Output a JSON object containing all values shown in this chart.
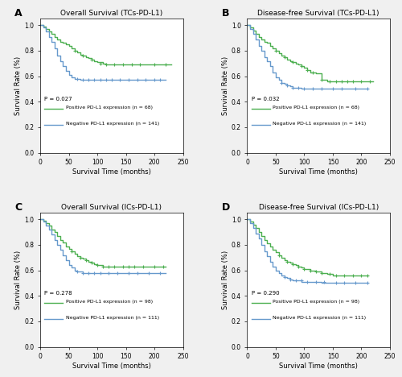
{
  "panels": [
    {
      "label": "A",
      "title": "Overall Survival (TCs-PD-L1)",
      "pvalue": "P = 0.027",
      "pos_label": "Positive PD-L1 expression (n = 68)",
      "neg_label": "Negative PD-L1 expression (n = 141)",
      "pos_color": "#4CAF50",
      "neg_color": "#6699CC",
      "xlabel": "Survival Time (months)",
      "ylabel": "Survival Rate (%)",
      "xlim": [
        0,
        250
      ],
      "ylim": [
        0.0,
        1.05
      ],
      "yticks": [
        0.0,
        0.2,
        0.4,
        0.6,
        0.8,
        1.0
      ],
      "xticks": [
        0,
        50,
        100,
        150,
        200,
        250
      ],
      "pos_curve_x": [
        0,
        5,
        10,
        15,
        20,
        25,
        30,
        35,
        40,
        45,
        50,
        55,
        60,
        65,
        70,
        75,
        80,
        85,
        90,
        95,
        100,
        110,
        115,
        120,
        130,
        140,
        150,
        160,
        170,
        180,
        190,
        200,
        210,
        220,
        230
      ],
      "pos_curve_y": [
        1.0,
        0.99,
        0.97,
        0.95,
        0.93,
        0.91,
        0.89,
        0.87,
        0.86,
        0.85,
        0.84,
        0.82,
        0.8,
        0.79,
        0.77,
        0.76,
        0.75,
        0.74,
        0.73,
        0.72,
        0.71,
        0.7,
        0.69,
        0.69,
        0.69,
        0.69,
        0.69,
        0.69,
        0.69,
        0.69,
        0.69,
        0.69,
        0.69,
        0.69,
        0.69
      ],
      "neg_curve_x": [
        0,
        5,
        10,
        15,
        20,
        25,
        30,
        35,
        40,
        45,
        50,
        55,
        60,
        65,
        70,
        75,
        80,
        85,
        90,
        95,
        100,
        110,
        120,
        130,
        140,
        150,
        160,
        170,
        180,
        190,
        200,
        210,
        220
      ],
      "neg_curve_y": [
        1.0,
        0.98,
        0.95,
        0.91,
        0.87,
        0.82,
        0.76,
        0.72,
        0.68,
        0.64,
        0.61,
        0.59,
        0.58,
        0.58,
        0.57,
        0.57,
        0.57,
        0.57,
        0.57,
        0.57,
        0.57,
        0.57,
        0.57,
        0.57,
        0.57,
        0.57,
        0.57,
        0.57,
        0.57,
        0.57,
        0.57,
        0.57,
        0.57
      ],
      "pos_censor_x": [
        60,
        75,
        90,
        105,
        115,
        130,
        145,
        160,
        175,
        200,
        220
      ],
      "pos_censor_y": [
        0.8,
        0.76,
        0.73,
        0.7,
        0.69,
        0.69,
        0.69,
        0.69,
        0.69,
        0.69,
        0.69
      ],
      "neg_censor_x": [
        65,
        75,
        85,
        95,
        105,
        115,
        125,
        140,
        155,
        170,
        185,
        200,
        210
      ],
      "neg_censor_y": [
        0.58,
        0.57,
        0.57,
        0.57,
        0.57,
        0.57,
        0.57,
        0.57,
        0.57,
        0.57,
        0.57,
        0.57,
        0.57
      ]
    },
    {
      "label": "B",
      "title": "Disease-free Survival (TCs-PD-L1)",
      "pvalue": "P = 0.032",
      "pos_label": "Positive PD-L1 expression (n = 68)",
      "neg_label": "Negative PD-L1 expression (n = 141)",
      "pos_color": "#4CAF50",
      "neg_color": "#6699CC",
      "xlabel": "Survival Time (months)",
      "ylabel": "Survival Rate (%)",
      "xlim": [
        0,
        250
      ],
      "ylim": [
        0.0,
        1.05
      ],
      "yticks": [
        0.0,
        0.2,
        0.4,
        0.6,
        0.8,
        1.0
      ],
      "xticks": [
        0,
        50,
        100,
        150,
        200,
        250
      ],
      "pos_curve_x": [
        0,
        5,
        10,
        15,
        20,
        25,
        30,
        35,
        40,
        45,
        50,
        55,
        60,
        65,
        70,
        75,
        80,
        85,
        90,
        95,
        100,
        105,
        110,
        120,
        130,
        140,
        150,
        160,
        170,
        180,
        190,
        200,
        210,
        220
      ],
      "pos_curve_y": [
        1.0,
        0.98,
        0.96,
        0.93,
        0.91,
        0.89,
        0.87,
        0.86,
        0.84,
        0.82,
        0.8,
        0.78,
        0.76,
        0.75,
        0.73,
        0.72,
        0.71,
        0.7,
        0.69,
        0.68,
        0.67,
        0.65,
        0.63,
        0.62,
        0.57,
        0.56,
        0.56,
        0.56,
        0.56,
        0.56,
        0.56,
        0.56,
        0.56,
        0.56
      ],
      "neg_curve_x": [
        0,
        5,
        10,
        15,
        20,
        25,
        30,
        35,
        40,
        45,
        50,
        55,
        60,
        65,
        70,
        75,
        80,
        85,
        90,
        95,
        100,
        110,
        120,
        130,
        140,
        150,
        160,
        170,
        180,
        190,
        200,
        210
      ],
      "neg_curve_y": [
        1.0,
        0.97,
        0.93,
        0.89,
        0.84,
        0.8,
        0.75,
        0.72,
        0.68,
        0.63,
        0.59,
        0.57,
        0.55,
        0.54,
        0.53,
        0.52,
        0.51,
        0.51,
        0.51,
        0.5,
        0.5,
        0.5,
        0.5,
        0.5,
        0.5,
        0.5,
        0.5,
        0.5,
        0.5,
        0.5,
        0.5,
        0.5
      ],
      "pos_censor_x": [
        50,
        65,
        80,
        95,
        105,
        115,
        130,
        145,
        155,
        165,
        175,
        185,
        200,
        215
      ],
      "pos_censor_y": [
        0.8,
        0.75,
        0.71,
        0.68,
        0.65,
        0.63,
        0.57,
        0.56,
        0.56,
        0.56,
        0.56,
        0.56,
        0.56,
        0.56
      ],
      "neg_censor_x": [
        60,
        70,
        80,
        90,
        100,
        115,
        130,
        150,
        165,
        190,
        210
      ],
      "neg_censor_y": [
        0.55,
        0.53,
        0.51,
        0.51,
        0.5,
        0.5,
        0.5,
        0.5,
        0.5,
        0.5,
        0.5
      ]
    },
    {
      "label": "C",
      "title": "Overall Survival (ICs-PD-L1)",
      "pvalue": "P = 0.278",
      "pos_label": "Positive PD-L1 expression (n = 98)",
      "neg_label": "Negative PD-L1 expression (n = 111)",
      "pos_color": "#4CAF50",
      "neg_color": "#6699CC",
      "xlabel": "Survival Time (months)",
      "ylabel": "Survival Rate (%)",
      "xlim": [
        0,
        250
      ],
      "ylim": [
        0.0,
        1.05
      ],
      "yticks": [
        0.0,
        0.2,
        0.4,
        0.6,
        0.8,
        1.0
      ],
      "xticks": [
        0,
        50,
        100,
        150,
        200,
        250
      ],
      "pos_curve_x": [
        0,
        5,
        10,
        15,
        20,
        25,
        30,
        35,
        40,
        45,
        50,
        55,
        60,
        65,
        70,
        75,
        80,
        85,
        90,
        95,
        100,
        110,
        120,
        130,
        140,
        150,
        160,
        170,
        180,
        200,
        210,
        220
      ],
      "pos_curve_y": [
        1.0,
        0.99,
        0.97,
        0.95,
        0.92,
        0.9,
        0.87,
        0.84,
        0.82,
        0.79,
        0.77,
        0.75,
        0.73,
        0.71,
        0.7,
        0.69,
        0.68,
        0.67,
        0.66,
        0.65,
        0.64,
        0.63,
        0.63,
        0.63,
        0.63,
        0.63,
        0.63,
        0.63,
        0.63,
        0.63,
        0.63,
        0.63
      ],
      "neg_curve_x": [
        0,
        5,
        10,
        15,
        20,
        25,
        30,
        35,
        40,
        45,
        50,
        55,
        60,
        65,
        70,
        75,
        80,
        85,
        90,
        95,
        100,
        110,
        120,
        130,
        140,
        150,
        160,
        170,
        180,
        200,
        210,
        220
      ],
      "neg_curve_y": [
        1.0,
        0.98,
        0.95,
        0.92,
        0.88,
        0.84,
        0.8,
        0.76,
        0.72,
        0.68,
        0.64,
        0.62,
        0.6,
        0.59,
        0.59,
        0.58,
        0.58,
        0.58,
        0.58,
        0.58,
        0.58,
        0.58,
        0.58,
        0.58,
        0.58,
        0.58,
        0.58,
        0.58,
        0.58,
        0.58,
        0.58,
        0.58
      ],
      "pos_censor_x": [
        55,
        70,
        80,
        90,
        100,
        110,
        120,
        130,
        145,
        155,
        165,
        180,
        200,
        215
      ],
      "pos_censor_y": [
        0.75,
        0.7,
        0.68,
        0.66,
        0.64,
        0.63,
        0.63,
        0.63,
        0.63,
        0.63,
        0.63,
        0.63,
        0.63,
        0.63
      ],
      "neg_censor_x": [
        65,
        75,
        85,
        95,
        105,
        120,
        135,
        155,
        170,
        190,
        210
      ],
      "neg_censor_y": [
        0.59,
        0.58,
        0.58,
        0.58,
        0.58,
        0.58,
        0.58,
        0.58,
        0.58,
        0.58,
        0.58
      ]
    },
    {
      "label": "D",
      "title": "Disease-free Survival (ICs-PD-L1)",
      "pvalue": "P = 0.290",
      "pos_label": "Positive PD-L1 expression (n = 98)",
      "neg_label": "Negative PD-L1 expression (n = 111)",
      "pos_color": "#4CAF50",
      "neg_color": "#6699CC",
      "xlabel": "Survival Time (months)",
      "ylabel": "Survival Rate (%)",
      "xlim": [
        0,
        250
      ],
      "ylim": [
        0.0,
        1.05
      ],
      "yticks": [
        0.0,
        0.2,
        0.4,
        0.6,
        0.8,
        1.0
      ],
      "xticks": [
        0,
        50,
        100,
        150,
        200,
        250
      ],
      "pos_curve_x": [
        0,
        5,
        10,
        15,
        20,
        25,
        30,
        35,
        40,
        45,
        50,
        55,
        60,
        65,
        70,
        75,
        80,
        85,
        90,
        95,
        100,
        110,
        120,
        130,
        140,
        150,
        160,
        170,
        180,
        200,
        210
      ],
      "pos_curve_y": [
        1.0,
        0.98,
        0.96,
        0.93,
        0.9,
        0.87,
        0.84,
        0.81,
        0.79,
        0.76,
        0.74,
        0.72,
        0.7,
        0.68,
        0.67,
        0.66,
        0.65,
        0.64,
        0.63,
        0.62,
        0.61,
        0.6,
        0.59,
        0.58,
        0.57,
        0.56,
        0.56,
        0.56,
        0.56,
        0.56,
        0.56
      ],
      "neg_curve_x": [
        0,
        5,
        10,
        15,
        20,
        25,
        30,
        35,
        40,
        45,
        50,
        55,
        60,
        65,
        70,
        75,
        80,
        85,
        90,
        95,
        100,
        110,
        120,
        130,
        140,
        150,
        160,
        170,
        180,
        200,
        210
      ],
      "neg_curve_y": [
        1.0,
        0.97,
        0.93,
        0.89,
        0.85,
        0.8,
        0.75,
        0.71,
        0.67,
        0.63,
        0.6,
        0.58,
        0.56,
        0.55,
        0.54,
        0.53,
        0.52,
        0.52,
        0.52,
        0.51,
        0.51,
        0.51,
        0.51,
        0.5,
        0.5,
        0.5,
        0.5,
        0.5,
        0.5,
        0.5,
        0.5
      ],
      "pos_censor_x": [
        55,
        70,
        80,
        90,
        100,
        110,
        120,
        130,
        145,
        155,
        170,
        185,
        200,
        210
      ],
      "pos_censor_y": [
        0.72,
        0.67,
        0.65,
        0.63,
        0.61,
        0.6,
        0.59,
        0.58,
        0.57,
        0.56,
        0.56,
        0.56,
        0.56,
        0.56
      ],
      "neg_censor_x": [
        65,
        75,
        85,
        95,
        105,
        120,
        135,
        155,
        170,
        190,
        210
      ],
      "neg_censor_y": [
        0.55,
        0.53,
        0.52,
        0.52,
        0.51,
        0.51,
        0.51,
        0.5,
        0.5,
        0.5,
        0.5
      ]
    }
  ],
  "background_color": "#f0f0f0",
  "plot_bg_color": "#ffffff"
}
